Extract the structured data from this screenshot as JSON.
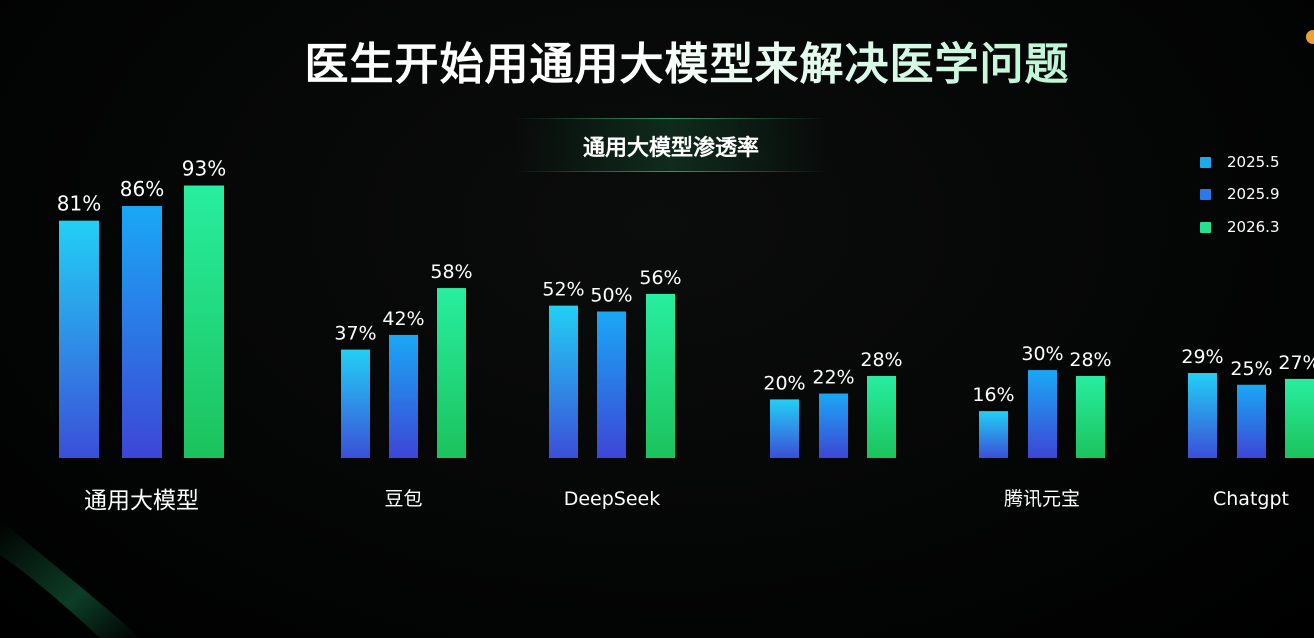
{
  "title": "医生开始用通用大模型来解决医学问题",
  "chart_data": {
    "type": "bar",
    "title": "通用大模型渗透率",
    "categories": [
      "通用大模型",
      "豆包",
      "DeepSeek",
      "",
      "腾讯元宝",
      "Chatgpt"
    ],
    "series": [
      {
        "name": "2025.5",
        "values": [
          81,
          37,
          52,
          20,
          16,
          29
        ],
        "color_top": "#22d0f5",
        "color_bottom": "#3b4fd8"
      },
      {
        "name": "2025.9",
        "values": [
          86,
          42,
          50,
          22,
          30,
          25
        ],
        "color_top": "#1aa8f5",
        "color_bottom": "#3d46d6"
      },
      {
        "name": "2026.3",
        "values": [
          93,
          58,
          56,
          28,
          28,
          27
        ],
        "color_top": "#27ee9f",
        "color_bottom": "#1cc25c"
      }
    ],
    "value_suffix": "%",
    "legend_position": "top-right",
    "grid": false
  },
  "legend": {
    "colors": [
      "#1ea8ee",
      "#2a7be8",
      "#27e08f"
    ]
  }
}
